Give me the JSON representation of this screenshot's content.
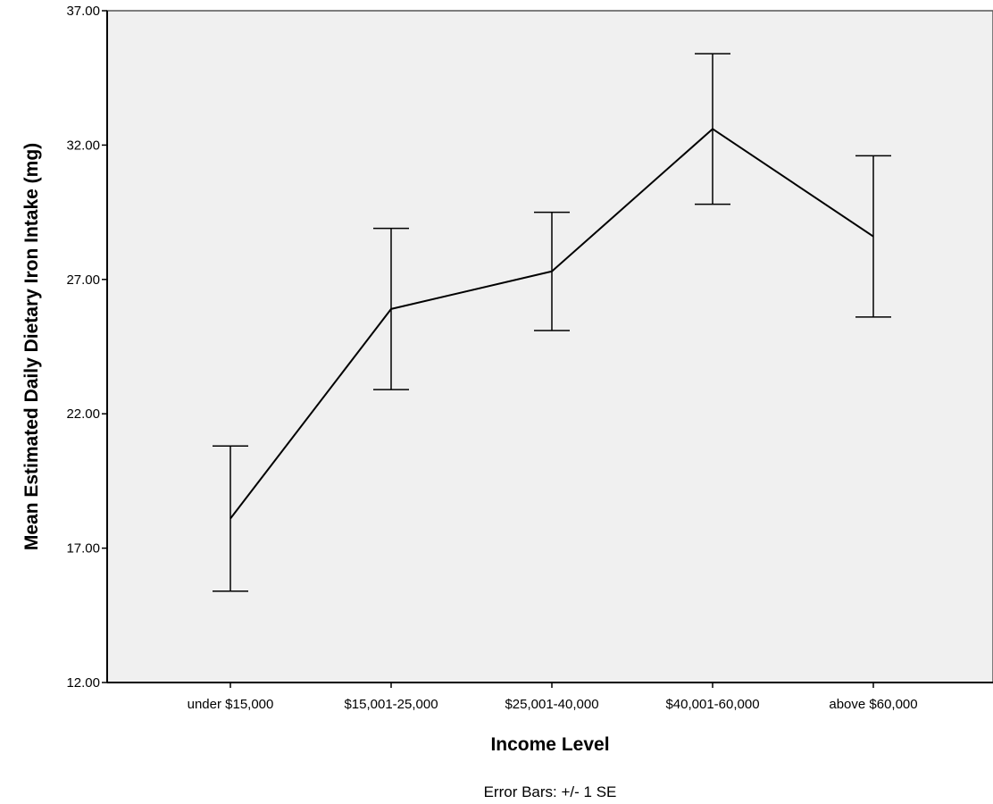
{
  "chart_data": {
    "type": "line",
    "title": "",
    "xlabel": "Income Level",
    "ylabel": "Mean Estimated Daily Dietary Iron Intake (mg)",
    "categories": [
      "under $15,000",
      "$15,001-25,000",
      "$25,001-40,000",
      "$40,001-60,000",
      "above $60,000"
    ],
    "series": [
      {
        "values": [
          18.1,
          25.9,
          27.3,
          32.6,
          28.6
        ],
        "error_low": [
          15.4,
          22.9,
          25.1,
          29.8,
          25.6
        ],
        "error_high": [
          20.8,
          28.9,
          29.5,
          35.4,
          31.6
        ]
      }
    ],
    "ylim": [
      12,
      37
    ],
    "yticks": [
      "12.00",
      "17.00",
      "22.00",
      "27.00",
      "32.00",
      "37.00"
    ],
    "grid": false,
    "footnote": "Error Bars: +/- 1 SE",
    "colors": {
      "plot_background": "#f0f0f0",
      "line": "#000000",
      "axis": "#000000"
    }
  }
}
